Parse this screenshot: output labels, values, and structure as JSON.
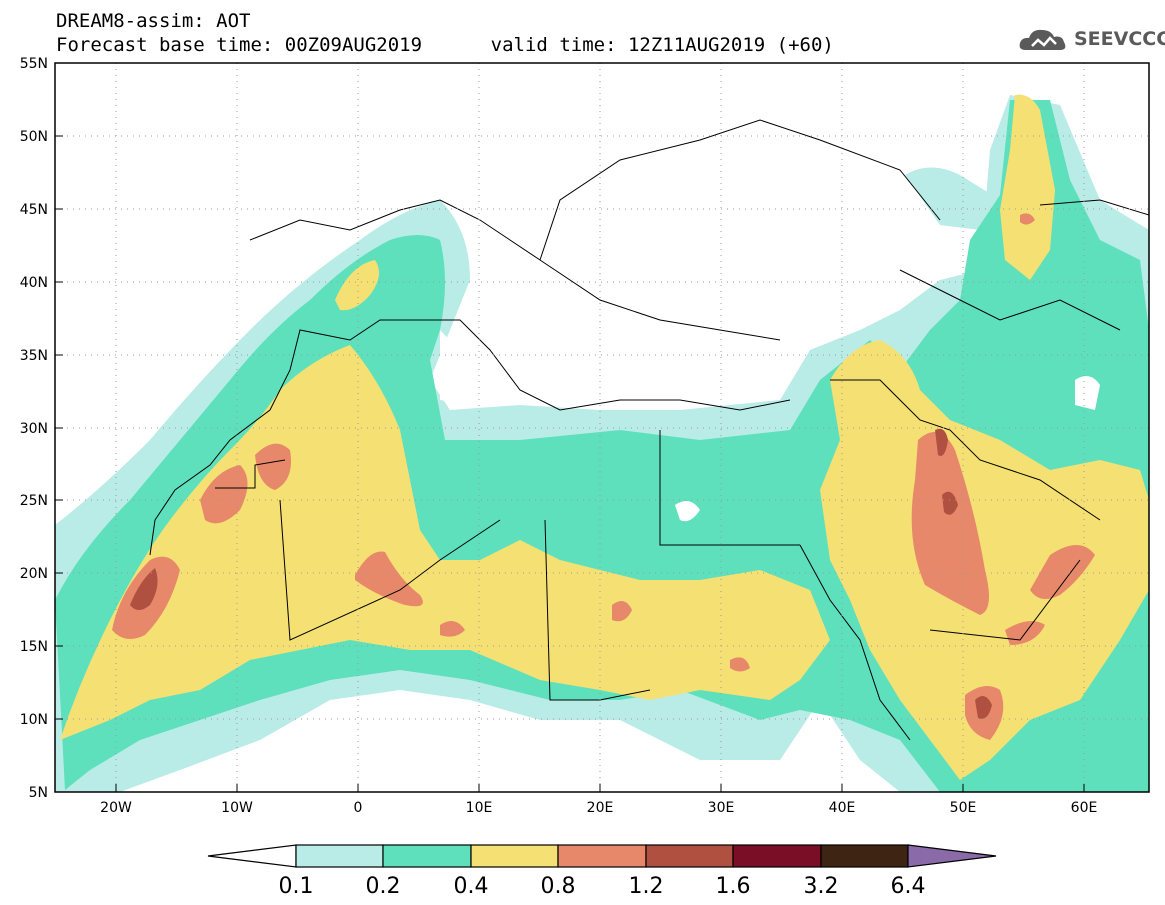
{
  "header": {
    "line1": "DREAM8-assim: AOT",
    "line2": "Forecast base time: 00Z09AUG2019      valid time: 12Z11AUG2019 (+60)"
  },
  "logo": {
    "text": "SEEVCCC",
    "icon": "cloud-icon"
  },
  "map": {
    "lon_range": [
      -25,
      65
    ],
    "lat_range": [
      5,
      55
    ],
    "lat_ticks": [
      "5N",
      "10N",
      "15N",
      "20N",
      "25N",
      "30N",
      "35N",
      "40N",
      "45N",
      "50N",
      "55N"
    ],
    "lon_ticks": [
      "20W",
      "10W",
      "0",
      "10E",
      "20E",
      "30E",
      "40E",
      "50E",
      "60E"
    ]
  },
  "colorbar": {
    "labels": [
      "0.1",
      "0.2",
      "0.4",
      "0.8",
      "1.2",
      "1.6",
      "3.2",
      "6.4"
    ],
    "colors": [
      "#ffffff",
      "#b9ece6",
      "#5ee0bc",
      "#f5e173",
      "#e8886a",
      "#b05040",
      "#7a0e26",
      "#3e2413",
      "#8a6aa8"
    ]
  },
  "colors": {
    "aot_0_1": "#b9ece6",
    "aot_0_2": "#5ee0bc",
    "aot_0_4": "#f5e173",
    "aot_0_8": "#e8886a",
    "aot_1_2": "#b05040",
    "border": "#000000"
  }
}
